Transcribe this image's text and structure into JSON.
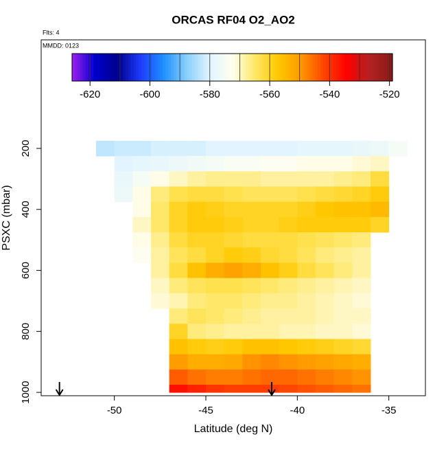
{
  "chart_data": {
    "type": "heatmap",
    "title": "ORCAS RF04 O2_AO2",
    "annotations": [
      "Flts: 4",
      "MMDD: 0123"
    ],
    "x_label": "Latitude (deg N)",
    "y_label": "PSXC (mbar)",
    "xlim": [
      -54,
      -33
    ],
    "xticks": [
      -50,
      -45,
      -40,
      -35
    ],
    "ylim": [
      1011,
      -156
    ],
    "yticks": [
      200,
      400,
      600,
      800,
      1000
    ],
    "x_edges": [
      -51,
      -50,
      -49,
      -48,
      -47,
      -46,
      -45,
      -44,
      -43,
      -42,
      -41,
      -40,
      -39,
      -38,
      -37,
      -36,
      -35,
      -34
    ],
    "y_edges": [
      175,
      225,
      275,
      325,
      375,
      425,
      475,
      525,
      575,
      625,
      675,
      725,
      775,
      825,
      875,
      925,
      975,
      1000
    ],
    "values": [
      [
        -583,
        -582,
        -582,
        -581,
        -581,
        -581,
        -580,
        -580,
        -580,
        -580,
        -580,
        -579,
        -579,
        -579,
        -578,
        -577,
        -575
      ],
      [
        null,
        -580,
        -579,
        -578,
        -577,
        -576,
        -575,
        -574,
        -574,
        -573,
        -573,
        -572,
        -572,
        -572,
        -571,
        -570,
        null
      ],
      [
        null,
        -578,
        -575,
        -572,
        -570,
        -568,
        -567,
        -567,
        -567,
        -568,
        -568,
        -568,
        -568,
        -567,
        -566,
        -562,
        null
      ],
      [
        null,
        -577,
        -572,
        -566,
        -563,
        -562,
        -562,
        -563,
        -564,
        -564,
        -564,
        -563,
        -562,
        -561,
        -560,
        -558,
        null
      ],
      [
        null,
        null,
        -572,
        -565,
        -560,
        -558,
        -559,
        -560,
        -560,
        -560,
        -560,
        -559,
        -557,
        -556,
        -556,
        -555,
        null
      ],
      [
        null,
        null,
        -570,
        -565,
        -560,
        -558,
        -558,
        -559,
        -560,
        -560,
        -559,
        -558,
        -558,
        -558,
        -558,
        -560,
        null
      ],
      [
        null,
        null,
        -572,
        -567,
        -562,
        -560,
        -560,
        -561,
        -562,
        -562,
        -562,
        -563,
        -564,
        -565,
        -566,
        null,
        null
      ],
      [
        null,
        null,
        -573,
        -568,
        -564,
        -562,
        -560,
        -558,
        -559,
        -561,
        -562,
        -564,
        -566,
        -567,
        -568,
        null,
        null
      ],
      [
        null,
        null,
        null,
        -568,
        -562,
        -556,
        -553,
        -551,
        -553,
        -556,
        -559,
        -562,
        -564,
        -566,
        -568,
        null,
        null
      ],
      [
        null,
        null,
        null,
        -570,
        -566,
        -564,
        -563,
        -563,
        -564,
        -565,
        -566,
        -567,
        -568,
        -569,
        -570,
        null,
        null
      ],
      [
        null,
        null,
        null,
        -571,
        -569,
        -566,
        -565,
        -565,
        -566,
        -567,
        -567,
        -568,
        -569,
        -570,
        -571,
        null,
        null
      ],
      [
        null,
        null,
        null,
        null,
        -566,
        -564,
        -565,
        -566,
        -567,
        -568,
        -568,
        -568,
        -569,
        -570,
        -570,
        null,
        null
      ],
      [
        null,
        null,
        null,
        null,
        -560,
        -566,
        -567,
        -568,
        -568,
        -568,
        -569,
        -569,
        -570,
        -570,
        -571,
        null,
        null
      ],
      [
        null,
        null,
        null,
        null,
        -556,
        -558,
        -559,
        -558,
        -556,
        -556,
        -557,
        -558,
        -559,
        -560,
        -561,
        null,
        null
      ],
      [
        null,
        null,
        null,
        null,
        -550,
        -553,
        -553,
        -552,
        -549,
        -548,
        -549,
        -550,
        -551,
        -552,
        -553,
        null,
        null
      ],
      [
        null,
        null,
        null,
        null,
        -544,
        -546,
        -547,
        -547,
        -546,
        -545,
        -545,
        -546,
        -547,
        -548,
        -549,
        null,
        null
      ],
      [
        null,
        null,
        null,
        null,
        -536,
        -538,
        -540,
        -541,
        -541,
        -541,
        -542,
        -543,
        -544,
        -545,
        -546,
        null,
        null
      ]
    ],
    "colorbar": {
      "clim": [
        -626,
        -519
      ],
      "ticks": [
        -620,
        -600,
        -580,
        -560,
        -540,
        -520
      ],
      "colors": [
        "#a020f0",
        "#0000cd",
        "#00008b",
        "#1e3cff",
        "#1e90ff",
        "#87cefa",
        "#e0f4ff",
        "#fffff0",
        "#ffe866",
        "#ffc800",
        "#ff9900",
        "#ff4500",
        "#ff0000",
        "#b22222",
        "#8b1a1a"
      ]
    },
    "arrows_x": [
      -53,
      -41.4
    ]
  }
}
